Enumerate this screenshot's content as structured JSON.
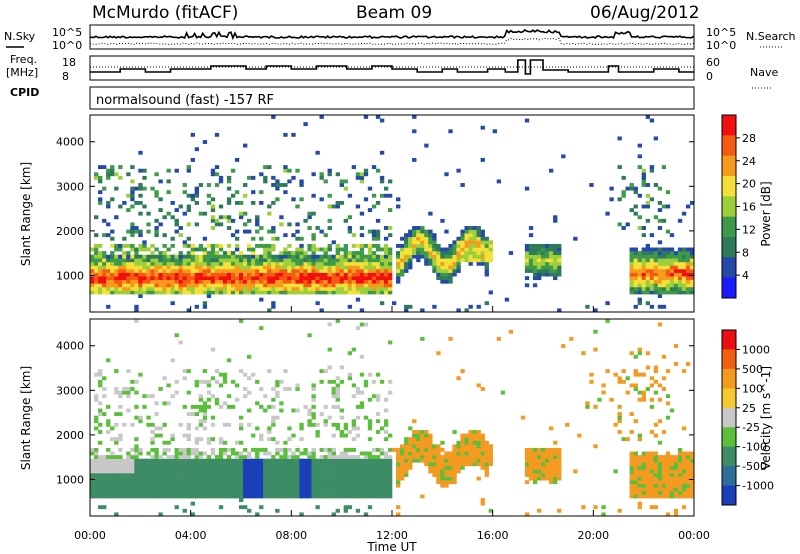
{
  "header": {
    "station": "McMurdo (fitACF)",
    "beam": "Beam 09",
    "date": "06/Aug/2012"
  },
  "mode_line": "normalsound (fast) -157 RF",
  "chart_data": [
    {
      "type": "line",
      "name": "noise-panel",
      "left_label": "N.Sky",
      "right_label": "N.Search",
      "left_ticks": [
        "10^5",
        "10^0"
      ],
      "right_ticks": [
        "10^5",
        "10^0"
      ]
    },
    {
      "type": "line",
      "name": "frequency-panel",
      "left_label_1": "Freq.",
      "left_label_2": "[MHz]",
      "right_label": "Nave",
      "left_ticks": [
        "18",
        "8"
      ],
      "right_ticks": [
        "60",
        "0"
      ],
      "cpid_label": "CPID"
    },
    {
      "type": "heatmap",
      "name": "power-panel",
      "ylabel": "Slant Range [km]",
      "yticks": [
        1000,
        2000,
        3000,
        4000
      ],
      "ylim": [
        180,
        4600
      ],
      "xlim": [
        0,
        24
      ],
      "colorbar_label": "Power [dB]",
      "colorbar_ticks": [
        "28",
        "24",
        "20",
        "16",
        "12",
        "8",
        "4"
      ],
      "colors": [
        "#1a1aff",
        "#2449a8",
        "#2f7a5a",
        "#3c9a4a",
        "#9ccf3a",
        "#f5e03a",
        "#f79a1c",
        "#f45a12",
        "#f01010"
      ]
    },
    {
      "type": "heatmap",
      "name": "velocity-panel",
      "ylabel": "Slant Range [km]",
      "yticks": [
        1000,
        2000,
        3000,
        4000
      ],
      "ylim": [
        180,
        4600
      ],
      "xlim": [
        0,
        24
      ],
      "xlabel": "Time UT",
      "xticks": [
        "00:00",
        "04:00",
        "08:00",
        "12:00",
        "16:00",
        "20:00",
        "00:00"
      ],
      "colorbar_label": "Velocity [m s^-1]",
      "colorbar_ticks": [
        "1000",
        "500",
        "100",
        "25",
        "-25",
        "-100",
        "-500",
        "-1000"
      ],
      "colors": [
        "#1b3fb8",
        "#2c6f9a",
        "#3c8c66",
        "#5abf3a",
        "#c8c8c8",
        "#f5c830",
        "#f49a20",
        "#f06010",
        "#e81010"
      ]
    }
  ]
}
